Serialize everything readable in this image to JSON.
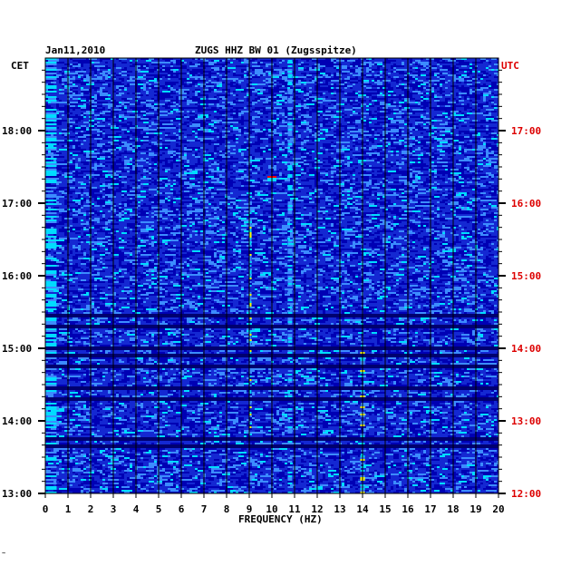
{
  "chart_data": {
    "type": "heatmap",
    "title": "ZUGS HHZ BW 01 (Zugsspitze)",
    "date": "Jan11,2010",
    "xlabel": "FREQUENCY (HZ)",
    "left_axis_label": "CET",
    "right_axis_label": "UTC",
    "xlim": [
      0,
      20
    ],
    "x_ticks": [
      "0",
      "1",
      "2",
      "3",
      "4",
      "5",
      "6",
      "7",
      "8",
      "9",
      "10",
      "11",
      "12",
      "13",
      "14",
      "15",
      "16",
      "17",
      "18",
      "19",
      "20"
    ],
    "ylim_hours": [
      13,
      19
    ],
    "y_ticks_cet": [
      "18:00",
      "17:00",
      "16:00",
      "15:00",
      "14:00",
      "13:00"
    ],
    "y_ticks_utc": [
      "17:00",
      "16:00",
      "15:00",
      "14:00",
      "13:00",
      "12:00"
    ],
    "colors": {
      "background": "#0000b4",
      "low": "#1428d2",
      "mid": "#3c8cff",
      "high": "#00dcff",
      "peak": "#ffff00",
      "max": "#ff0000",
      "utc_text": "#dd0000",
      "grid": "#000000"
    },
    "features": [
      {
        "frequency_hz": [
          0,
          0.5
        ],
        "hours": [
          13,
          19
        ],
        "level": "high"
      },
      {
        "frequency_hz": [
          10.7,
          10.9
        ],
        "hours": [
          13,
          19
        ],
        "level": "mid"
      },
      {
        "frequency_hz": [
          9,
          9.1
        ],
        "hours": [
          13.9,
          16.9
        ],
        "level": "peak"
      },
      {
        "frequency_hz": [
          13.9,
          14.1
        ],
        "hours": [
          13,
          15.2
        ],
        "level": "peak"
      },
      {
        "frequency_hz": [
          9.8,
          10.2
        ],
        "hours": [
          17.3,
          17.4
        ],
        "level": "max"
      }
    ],
    "dark_gap_hours": [
      15.45,
      15.3,
      15.0,
      14.9,
      14.75,
      14.45,
      14.3,
      13.75,
      13.65
    ]
  },
  "footer": {
    "mark": "~"
  }
}
